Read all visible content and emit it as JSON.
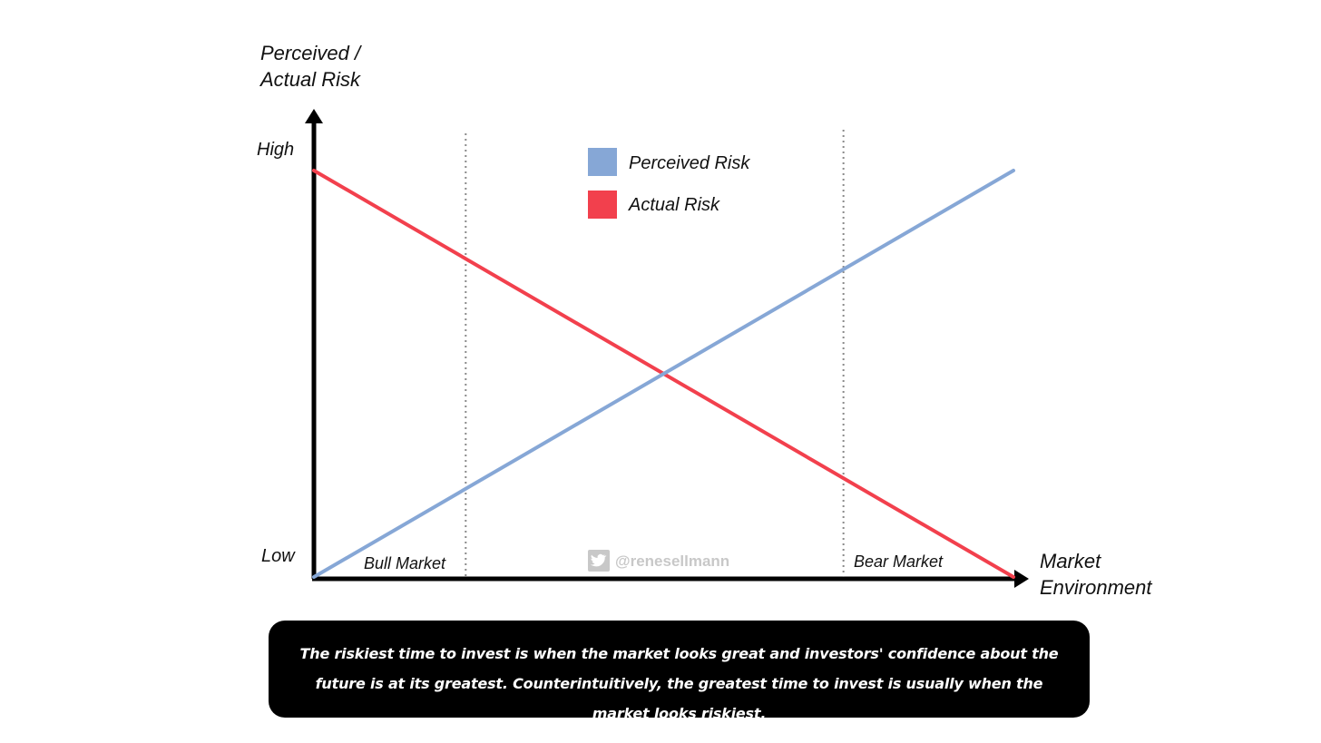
{
  "chart_data": {
    "type": "line",
    "ylabel": "Perceived / Actual Risk",
    "ylabel_lines": [
      "Perceived /",
      "Actual Risk"
    ],
    "xlabel": "Market Environment",
    "xlabel_lines": [
      "Market",
      "Environment"
    ],
    "y_ticks": [
      "Low",
      "High"
    ],
    "x": [
      0,
      1
    ],
    "ylim": [
      0,
      1
    ],
    "xlim": [
      0,
      1
    ],
    "grid": false,
    "legend_position": "top-center",
    "series": [
      {
        "name": "Perceived Risk",
        "color": "#86a7d6",
        "values": [
          0,
          1
        ]
      },
      {
        "name": "Actual Risk",
        "color": "#f2404d",
        "values": [
          1,
          0
        ]
      }
    ],
    "regions": [
      {
        "label": "Bull Market",
        "x_end": 0.217
      },
      {
        "label": "Bear Market",
        "x_start": 0.757
      }
    ]
  },
  "watermark": {
    "handle": "@renesellmann",
    "icon": "twitter-bird-icon",
    "color": "#c8c8c8"
  },
  "caption": {
    "text": "The riskiest time to invest is when the market looks great and investors' confidence about the future is at its greatest. Counterintuitively, the greatest time to invest is usually when the market looks riskiest."
  }
}
